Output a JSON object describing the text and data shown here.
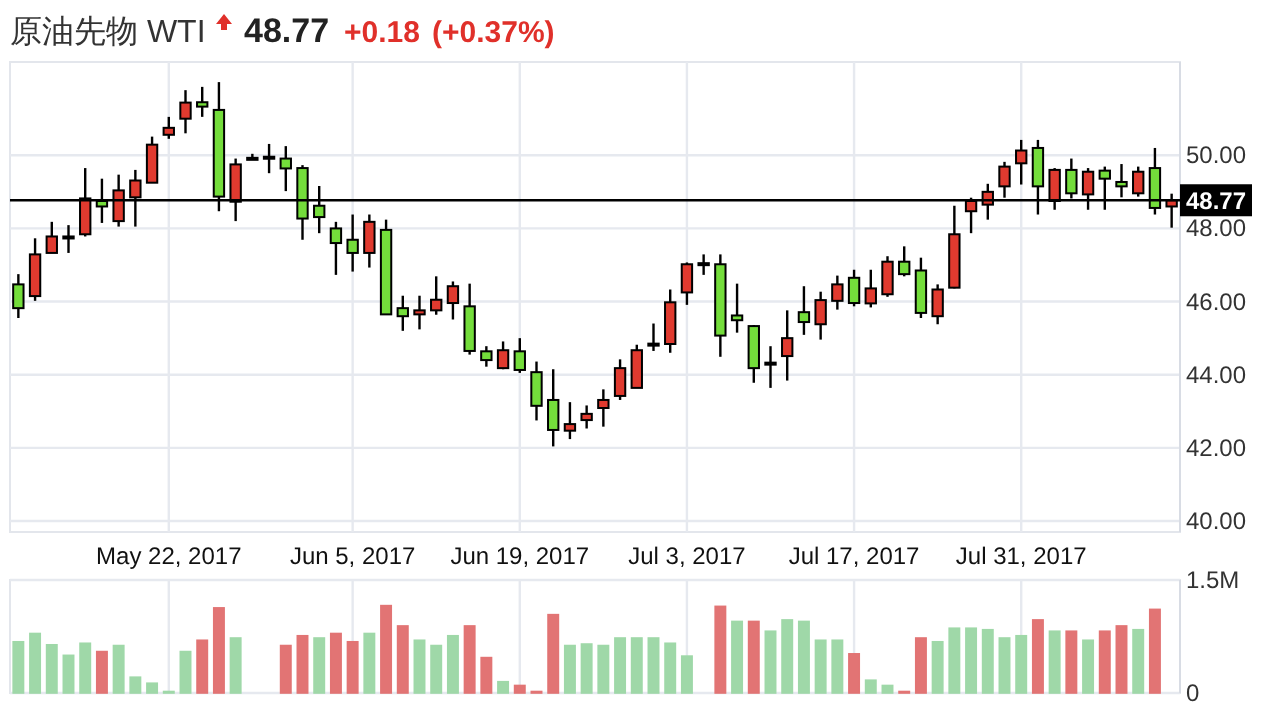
{
  "chart_data": [
    {
      "type": "candlestick",
      "title": "原油先物 WTI",
      "annotations": [
        "48.77",
        "+0.18",
        "(+0.37%)"
      ],
      "categories": [
        null,
        null,
        null,
        null,
        null,
        null,
        null,
        null,
        null,
        "May 22, 2017",
        null,
        null,
        null,
        null,
        null,
        null,
        null,
        null,
        null,
        null,
        "Jun 5, 2017",
        null,
        null,
        null,
        null,
        null,
        null,
        null,
        null,
        null,
        "Jun 19, 2017",
        null,
        null,
        null,
        null,
        null,
        null,
        null,
        null,
        null,
        "Jul 3, 2017",
        null,
        null,
        null,
        null,
        null,
        null,
        null,
        null,
        null,
        "Jul 17, 2017",
        null,
        null,
        null,
        null,
        null,
        null,
        null,
        null,
        null,
        "Jul 31, 2017",
        null,
        null,
        null,
        null,
        null,
        null,
        null,
        null,
        null
      ],
      "ohlc": [
        [
          46.47,
          46.75,
          45.55,
          45.82
        ],
        [
          46.15,
          47.73,
          46.02,
          47.29
        ],
        [
          47.33,
          48.18,
          47.33,
          47.78
        ],
        [
          47.78,
          48.09,
          47.33,
          47.78
        ],
        [
          47.84,
          49.65,
          47.78,
          48.82
        ],
        [
          48.75,
          49.36,
          48.15,
          48.6
        ],
        [
          48.2,
          49.47,
          48.05,
          49.04
        ],
        [
          48.85,
          49.6,
          48.05,
          49.31
        ],
        [
          49.25,
          50.51,
          49.25,
          50.29
        ],
        [
          50.56,
          51.05,
          50.45,
          50.75
        ],
        [
          51.0,
          51.78,
          50.6,
          51.44
        ],
        [
          51.45,
          51.87,
          51.05,
          51.33
        ],
        [
          51.24,
          52.0,
          48.47,
          48.87
        ],
        [
          48.73,
          49.91,
          48.2,
          49.75
        ],
        [
          49.93,
          50.04,
          49.87,
          49.93
        ],
        [
          49.96,
          50.31,
          49.51,
          49.91
        ],
        [
          49.91,
          50.25,
          49.02,
          49.64
        ],
        [
          49.65,
          49.73,
          47.69,
          48.27
        ],
        [
          48.62,
          49.16,
          47.87,
          48.31
        ],
        [
          48.0,
          48.18,
          46.73,
          47.6
        ],
        [
          47.69,
          48.38,
          46.82,
          47.33
        ],
        [
          47.33,
          48.38,
          46.93,
          48.18
        ],
        [
          47.96,
          48.24,
          45.65,
          45.65
        ],
        [
          45.82,
          46.16,
          45.2,
          45.6
        ],
        [
          45.65,
          46.16,
          45.24,
          45.76
        ],
        [
          45.76,
          46.69,
          45.64,
          46.05
        ],
        [
          45.96,
          46.55,
          45.51,
          46.42
        ],
        [
          45.87,
          46.49,
          44.55,
          44.65
        ],
        [
          44.64,
          44.78,
          44.22,
          44.4
        ],
        [
          44.18,
          44.91,
          44.15,
          44.67
        ],
        [
          44.64,
          45.0,
          44.05,
          44.13
        ],
        [
          44.07,
          44.36,
          42.75,
          43.15
        ],
        [
          43.31,
          44.15,
          42.04,
          42.49
        ],
        [
          42.47,
          43.25,
          42.24,
          42.65
        ],
        [
          42.76,
          43.16,
          42.53,
          42.93
        ],
        [
          43.09,
          43.6,
          42.58,
          43.31
        ],
        [
          43.42,
          44.42,
          43.31,
          44.18
        ],
        [
          43.64,
          44.82,
          43.64,
          44.67
        ],
        [
          44.85,
          45.4,
          44.65,
          44.85
        ],
        [
          44.84,
          46.33,
          44.6,
          45.98
        ],
        [
          46.25,
          47.07,
          45.91,
          47.02
        ],
        [
          47.05,
          47.29,
          46.73,
          47.05
        ],
        [
          47.02,
          47.29,
          44.49,
          45.07
        ],
        [
          45.62,
          46.49,
          45.15,
          45.49
        ],
        [
          45.33,
          45.36,
          43.78,
          44.18
        ],
        [
          44.33,
          44.78,
          43.64,
          44.33
        ],
        [
          44.51,
          45.76,
          43.84,
          45.0
        ],
        [
          45.71,
          46.42,
          45.09,
          45.44
        ],
        [
          45.38,
          46.27,
          44.96,
          46.04
        ],
        [
          46.02,
          46.71,
          45.78,
          46.47
        ],
        [
          46.65,
          46.87,
          45.87,
          45.96
        ],
        [
          45.95,
          46.87,
          45.84,
          46.36
        ],
        [
          46.2,
          47.24,
          46.13,
          47.09
        ],
        [
          47.09,
          47.51,
          46.69,
          46.75
        ],
        [
          46.85,
          47.2,
          45.55,
          45.69
        ],
        [
          45.6,
          46.47,
          45.38,
          46.33
        ],
        [
          46.38,
          48.62,
          46.36,
          47.84
        ],
        [
          48.47,
          48.84,
          47.87,
          48.75
        ],
        [
          48.65,
          49.22,
          48.24,
          49.0
        ],
        [
          49.15,
          49.82,
          48.84,
          49.69
        ],
        [
          49.78,
          50.42,
          49.2,
          50.13
        ],
        [
          50.2,
          50.42,
          48.38,
          49.15
        ],
        [
          48.75,
          49.65,
          48.51,
          49.6
        ],
        [
          49.6,
          49.91,
          48.82,
          48.96
        ],
        [
          48.93,
          49.65,
          48.51,
          49.55
        ],
        [
          49.58,
          49.69,
          48.51,
          49.36
        ],
        [
          49.27,
          49.76,
          48.85,
          49.15
        ],
        [
          48.96,
          49.69,
          48.87,
          49.55
        ],
        [
          49.65,
          50.2,
          48.38,
          48.56
        ],
        [
          48.6,
          48.95,
          48.02,
          48.77
        ]
      ],
      "colors": [
        "#74dd3b",
        "#e03a2f",
        "#e03a2f",
        "#e03a2f",
        "#e03a2f",
        "#74dd3b",
        "#e03a2f",
        "#e03a2f",
        "#e03a2f",
        "#e03a2f",
        "#e03a2f",
        "#74dd3b",
        "#74dd3b",
        "#e03a2f",
        "#e03a2f",
        "#74dd3b",
        "#74dd3b",
        "#74dd3b",
        "#74dd3b",
        "#74dd3b",
        "#74dd3b",
        "#e03a2f",
        "#74dd3b",
        "#74dd3b",
        "#e03a2f",
        "#e03a2f",
        "#e03a2f",
        "#74dd3b",
        "#74dd3b",
        "#e03a2f",
        "#74dd3b",
        "#74dd3b",
        "#74dd3b",
        "#e03a2f",
        "#e03a2f",
        "#e03a2f",
        "#e03a2f",
        "#e03a2f",
        "#e03a2f",
        "#e03a2f",
        "#e03a2f",
        "#e03a2f",
        "#74dd3b",
        "#74dd3b",
        "#74dd3b",
        "#e03a2f",
        "#e03a2f",
        "#74dd3b",
        "#e03a2f",
        "#e03a2f",
        "#74dd3b",
        "#e03a2f",
        "#e03a2f",
        "#74dd3b",
        "#74dd3b",
        "#e03a2f",
        "#e03a2f",
        "#e03a2f",
        "#e03a2f",
        "#e03a2f",
        "#e03a2f",
        "#74dd3b",
        "#e03a2f",
        "#74dd3b",
        "#e03a2f",
        "#74dd3b",
        "#74dd3b",
        "#e03a2f",
        "#74dd3b",
        "#e03a2f"
      ],
      "ylim": [
        39.7,
        52.55
      ],
      "yticks": [
        {
          "value": 40,
          "label": "40.00"
        },
        {
          "value": 42,
          "label": "42.00"
        },
        {
          "value": 44,
          "label": "44.00"
        },
        {
          "value": 46,
          "label": "46.00"
        },
        {
          "value": 48,
          "label": "48.00"
        },
        {
          "value": 50,
          "label": "50.00"
        }
      ],
      "ref_lines": [
        {
          "axis": "y",
          "value": 48.77,
          "label": "48.77",
          "color": "#000000"
        }
      ],
      "grid": true
    },
    {
      "type": "bar",
      "categories": [
        null,
        null,
        null,
        null,
        null,
        null,
        null,
        null,
        null,
        null,
        null,
        null,
        null,
        null,
        null,
        null,
        null,
        null,
        null,
        null,
        null,
        null,
        null,
        null,
        null,
        null,
        null,
        null,
        null,
        null,
        null,
        null,
        null,
        null,
        null,
        null,
        null,
        null,
        null,
        null,
        null,
        null,
        null,
        null,
        null,
        null,
        null,
        null,
        null,
        null,
        null,
        null,
        null,
        null,
        null,
        null,
        null,
        null,
        null,
        null,
        null,
        null,
        null,
        null,
        null,
        null,
        null,
        null,
        null,
        null
      ],
      "values": [
        0.68,
        0.79,
        0.64,
        0.5,
        0.66,
        0.55,
        0.63,
        0.21,
        0.13,
        0.02,
        0.55,
        0.7,
        1.13,
        0.73,
        null,
        null,
        0.63,
        0.76,
        0.73,
        0.79,
        0.68,
        0.79,
        1.16,
        0.89,
        0.7,
        0.63,
        0.76,
        0.89,
        0.47,
        0.15,
        0.1,
        0.02,
        1.04,
        0.63,
        0.65,
        0.63,
        0.73,
        0.73,
        0.73,
        0.66,
        0.49,
        null,
        1.15,
        0.95,
        0.95,
        0.82,
        0.97,
        0.95,
        0.7,
        0.7,
        0.52,
        0.17,
        0.1,
        0.02,
        0.73,
        0.68,
        0.86,
        0.86,
        0.84,
        0.73,
        0.76,
        0.97,
        0.82,
        0.82,
        0.7,
        0.82,
        0.89,
        0.84,
        1.11,
        null
      ],
      "colors": [
        "#9fd8a8",
        "#9fd8a8",
        "#9fd8a8",
        "#9fd8a8",
        "#9fd8a8",
        "#e27474",
        "#9fd8a8",
        "#9fd8a8",
        "#9fd8a8",
        "#9fd8a8",
        "#9fd8a8",
        "#e27474",
        "#e27474",
        "#9fd8a8",
        null,
        null,
        "#e27474",
        "#e27474",
        "#9fd8a8",
        "#e27474",
        "#e27474",
        "#9fd8a8",
        "#e27474",
        "#e27474",
        "#9fd8a8",
        "#9fd8a8",
        "#9fd8a8",
        "#e27474",
        "#e27474",
        "#9fd8a8",
        "#e27474",
        "#e27474",
        "#e27474",
        "#9fd8a8",
        "#9fd8a8",
        "#9fd8a8",
        "#9fd8a8",
        "#9fd8a8",
        "#9fd8a8",
        "#9fd8a8",
        "#9fd8a8",
        null,
        "#e27474",
        "#9fd8a8",
        "#e27474",
        "#9fd8a8",
        "#9fd8a8",
        "#9fd8a8",
        "#9fd8a8",
        "#9fd8a8",
        "#e27474",
        "#9fd8a8",
        "#9fd8a8",
        "#e27474",
        "#e27474",
        "#9fd8a8",
        "#9fd8a8",
        "#9fd8a8",
        "#9fd8a8",
        "#9fd8a8",
        "#9fd8a8",
        "#e27474",
        "#9fd8a8",
        "#e27474",
        "#9fd8a8",
        "#e27474",
        "#e27474",
        "#9fd8a8",
        "#e27474",
        null
      ],
      "ylim": [
        0,
        1.5
      ],
      "yticks": [
        0,
        {
          "value": 1.5,
          "label": "1.5M"
        }
      ],
      "tick_labels": "y",
      "grid": true
    }
  ]
}
